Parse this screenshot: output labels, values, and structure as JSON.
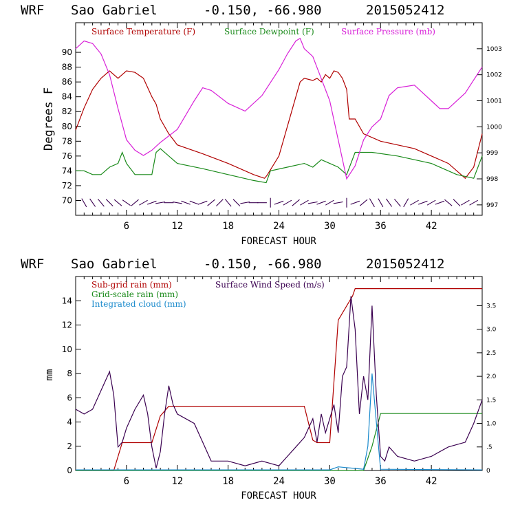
{
  "chart_data": [
    {
      "type": "line",
      "header": {
        "model": "WRF",
        "location": "Sao Gabriel",
        "coords": "-0.150, -66.980",
        "run": "2015052412"
      },
      "xlabel": "FORECAST HOUR",
      "ylabel": "Degrees F",
      "xlim": [
        0,
        48
      ],
      "ylim": [
        68,
        94
      ],
      "y2lim": [
        996.6,
        1004.0
      ],
      "x_ticks": [
        6,
        12,
        18,
        24,
        30,
        36,
        42
      ],
      "x_tick_labels": [
        "6",
        "12",
        "18",
        "24",
        "30",
        "36",
        "42"
      ],
      "y_ticks": [
        70,
        72,
        74,
        76,
        78,
        80,
        82,
        84,
        86,
        88,
        90
      ],
      "y_tick_labels": [
        "70",
        "72",
        "74",
        "76",
        "78",
        "80",
        "82",
        "84",
        "86",
        "88",
        "90"
      ],
      "y2_ticks": [
        997,
        998,
        999,
        1000,
        1001,
        1002,
        1003
      ],
      "y2_tick_labels": [
        "997",
        "998",
        "999",
        "1000",
        "1001",
        "1002",
        "1003"
      ],
      "legend": [
        {
          "label": "Surface Temperature (F)",
          "color": "#b00000"
        },
        {
          "label": "Surface Dewpoint (F)",
          "color": "#1a8a1a"
        },
        {
          "label": "Surface Pressure (mb)",
          "color": "#d820d8"
        }
      ],
      "series": [
        {
          "name": "Surface Temperature (F)",
          "color": "#b00000",
          "axis": "left",
          "x": [
            0,
            1,
            2,
            3,
            4,
            4.5,
            5,
            5.5,
            6,
            7,
            8,
            9,
            9.5,
            10,
            11,
            12,
            15,
            18,
            21,
            22.3,
            22.6,
            24,
            25,
            26,
            26.5,
            27,
            28,
            28.5,
            29,
            29.5,
            30,
            30.5,
            31,
            31.5,
            32,
            32.3,
            33,
            34,
            36,
            40,
            44,
            46,
            47,
            48
          ],
          "y": [
            79.5,
            82.5,
            85,
            86.5,
            87.5,
            87,
            86.5,
            87,
            87.5,
            87.3,
            86.5,
            84,
            83,
            81,
            79,
            77.5,
            76.3,
            75,
            73.5,
            73,
            73.4,
            76,
            80,
            84,
            86,
            86.5,
            86.2,
            86.5,
            86,
            87,
            86.5,
            87.5,
            87.3,
            86.5,
            85,
            81,
            81,
            79,
            78,
            77,
            75,
            73,
            74.5,
            79
          ]
        },
        {
          "name": "Surface Dewpoint (F)",
          "color": "#1a8a1a",
          "axis": "left",
          "x": [
            0,
            1,
            2,
            3,
            4,
            5,
            5.5,
            6,
            7,
            8,
            9,
            9.5,
            10,
            11,
            12,
            15,
            18,
            21,
            22.5,
            23,
            25,
            27,
            28,
            29,
            30,
            31,
            32,
            33,
            35,
            38,
            42,
            45,
            47,
            48
          ],
          "y": [
            74,
            74,
            73.5,
            73.5,
            74.5,
            75,
            76.5,
            75,
            73.5,
            73.5,
            73.5,
            76.5,
            77,
            76,
            75,
            74.3,
            73.5,
            72.7,
            72.4,
            74,
            74.5,
            75,
            74.5,
            75.5,
            75,
            74.5,
            73.5,
            76.5,
            76.5,
            76,
            75,
            73.5,
            73,
            76
          ]
        },
        {
          "name": "Surface Pressure (mb)",
          "color": "#d820d8",
          "axis": "right",
          "x": [
            0,
            1,
            2,
            3,
            4,
            5,
            6,
            7,
            8,
            9,
            10,
            12,
            14,
            15,
            16,
            18,
            20,
            22,
            24,
            25,
            26,
            26.5,
            27,
            28,
            30,
            31,
            32,
            33,
            34,
            35,
            36,
            37,
            38,
            40,
            42,
            43,
            44,
            46,
            48
          ],
          "y": [
            1003,
            1003.3,
            1003.2,
            1002.8,
            1002,
            1000.7,
            999.5,
            999.1,
            998.9,
            999.1,
            999.4,
            999.9,
            1001,
            1001.5,
            1001.4,
            1000.9,
            1000.6,
            1001.2,
            1002.2,
            1002.8,
            1003.3,
            1003.4,
            1003,
            1002.7,
            1001,
            999.5,
            998,
            998.5,
            999.5,
            1000,
            1000.3,
            1001.2,
            1001.5,
            1001.6,
            1001,
            1000.7,
            1000.7,
            1001.3,
            1002.3
          ]
        }
      ],
      "wind_barbs": {
        "x": [
          1,
          2,
          3,
          4,
          5,
          6,
          7,
          8,
          9,
          10,
          11,
          12,
          13,
          14,
          15,
          16,
          17,
          18,
          19,
          20,
          21,
          22,
          23,
          24,
          25,
          26,
          27,
          28,
          29,
          30,
          31,
          32,
          33,
          34,
          35,
          36,
          37,
          38,
          39,
          40,
          41,
          42,
          43,
          44,
          45,
          46,
          47
        ],
        "angle_deg": [
          -60,
          -55,
          -50,
          -45,
          -40,
          -35,
          40,
          30,
          20,
          10,
          0,
          -10,
          -20,
          -20,
          20,
          40,
          45,
          -50,
          -45,
          10,
          0,
          0,
          90,
          20,
          30,
          40,
          30,
          10,
          20,
          30,
          10,
          90,
          20,
          40,
          -60,
          -60,
          -55,
          -50,
          60,
          30,
          20,
          30,
          20,
          -40,
          -45,
          30,
          30
        ]
      }
    },
    {
      "type": "line",
      "header": {
        "model": "WRF",
        "location": "Sao Gabriel",
        "coords": "-0.150, -66.980",
        "run": "2015052412"
      },
      "xlabel": "FORECAST HOUR",
      "ylabel": "mm",
      "xlim": [
        0,
        48
      ],
      "ylim": [
        0,
        16
      ],
      "y2lim": [
        0,
        4.12
      ],
      "x_ticks": [
        6,
        12,
        18,
        24,
        30,
        36,
        42
      ],
      "x_tick_labels": [
        "6",
        "12",
        "18",
        "24",
        "30",
        "36",
        "42"
      ],
      "y_ticks": [
        0,
        2,
        4,
        6,
        8,
        10,
        12,
        14
      ],
      "y_tick_labels": [
        "0",
        "2",
        "4",
        "6",
        "8",
        "10",
        "12",
        "14"
      ],
      "y2_ticks": [
        0,
        0.5,
        1.0,
        1.5,
        2.0,
        2.5,
        3.0,
        3.5
      ],
      "y2_tick_labels": [
        "0",
        ".5",
        "1.0",
        "1.5",
        "2.0",
        "2.5",
        "3.0",
        "3.5"
      ],
      "legend": [
        {
          "label": "Sub-grid rain (mm)",
          "color": "#b00000"
        },
        {
          "label": "Surface Wind Speed (m/s)",
          "color": "#3a0050"
        },
        {
          "label": "Grid-scale rain (mm)",
          "color": "#1a8a1a"
        },
        {
          "label": "Integrated cloud (mm)",
          "color": "#1a8acc"
        }
      ],
      "series": [
        {
          "name": "Sub-grid rain (mm)",
          "color": "#b00000",
          "axis": "left",
          "x": [
            0,
            4.5,
            5.5,
            6,
            9,
            10,
            11,
            12,
            27,
            28,
            28.5,
            30,
            31,
            32.7,
            33,
            48
          ],
          "y": [
            0,
            0,
            2.3,
            2.3,
            2.3,
            4.5,
            5.3,
            5.3,
            5.3,
            2.5,
            2.3,
            2.3,
            12.4,
            14.4,
            15,
            15
          ]
        },
        {
          "name": "Grid-scale rain (mm)",
          "color": "#1a8a1a",
          "axis": "left",
          "x": [
            0,
            34,
            35,
            36,
            48
          ],
          "y": [
            0,
            0,
            2,
            4.7,
            4.7
          ]
        },
        {
          "name": "Integrated cloud (mm)",
          "color": "#1a8acc",
          "axis": "left",
          "x": [
            0,
            30,
            31,
            34,
            34.5,
            35,
            35.5,
            36,
            48
          ],
          "y": [
            0.05,
            0.05,
            0.3,
            0.1,
            2,
            8,
            4,
            0.1,
            0.05
          ]
        },
        {
          "name": "Surface Wind Speed (m/s)",
          "color": "#3a0050",
          "axis": "right",
          "x": [
            0,
            1,
            2,
            3,
            4,
            4.5,
            5,
            5.5,
            6,
            7,
            8,
            8.5,
            9,
            9.5,
            10,
            10.5,
            11,
            11.5,
            12,
            14,
            15,
            16,
            18,
            20,
            22,
            24,
            25,
            26,
            27,
            28,
            28.5,
            29,
            29.5,
            30,
            30.5,
            31,
            31.5,
            32,
            32.5,
            33,
            33.5,
            34,
            34.5,
            35,
            35.5,
            36,
            36.5,
            37,
            38,
            40,
            42,
            44,
            46,
            47,
            48
          ],
          "y": [
            1.3,
            1.2,
            1.3,
            1.7,
            2.1,
            1.6,
            0.5,
            0.6,
            0.9,
            1.3,
            1.6,
            1.2,
            0.5,
            0.05,
            0.4,
            1.2,
            1.8,
            1.4,
            1.2,
            1.0,
            0.6,
            0.2,
            0.2,
            0.1,
            0.2,
            0.1,
            0.3,
            0.5,
            0.7,
            1.1,
            0.6,
            1.2,
            0.8,
            1.1,
            1.4,
            0.8,
            2.0,
            2.2,
            3.7,
            3.0,
            1.2,
            2.0,
            1.5,
            3.5,
            1.6,
            0.3,
            0.2,
            0.5,
            0.3,
            0.2,
            0.3,
            0.5,
            0.6,
            1.0,
            1.5
          ]
        }
      ]
    }
  ]
}
